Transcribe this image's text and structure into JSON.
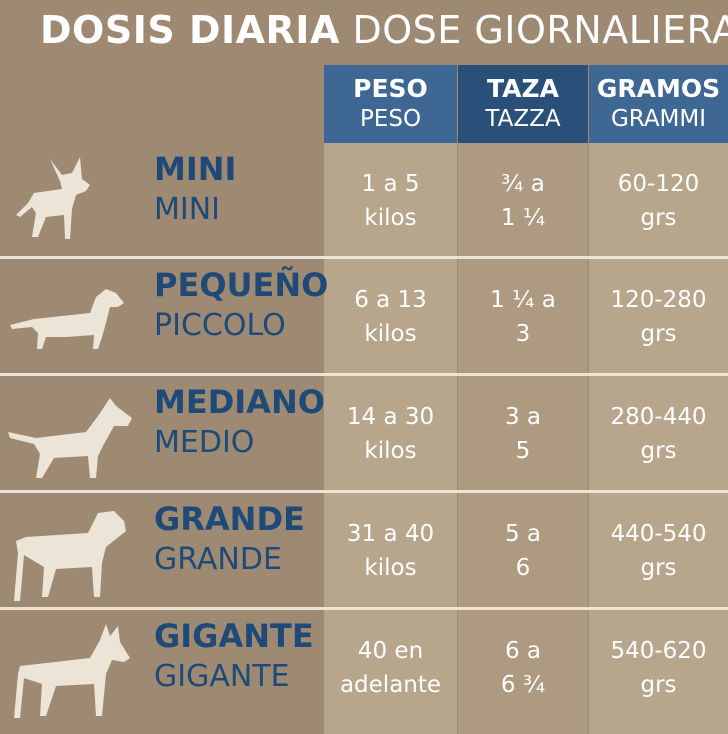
{
  "title": {
    "bold": "DOSIS DIARIA",
    "light": "DOSE GIORNALIERA"
  },
  "headers": [
    {
      "es": "PESO",
      "it": "PESO"
    },
    {
      "es": "TAZA",
      "it": "TAZZA"
    },
    {
      "es": "GRAMOS",
      "it": "GRAMMI"
    }
  ],
  "rows": [
    {
      "icon": "chihuahua-icon",
      "name_es": "MINI",
      "name_it": "MINI",
      "peso": [
        "1 a 5",
        "kilos"
      ],
      "taza": [
        "¾ a",
        "1 ¼"
      ],
      "gramos": [
        "60-120",
        "grs"
      ]
    },
    {
      "icon": "dachshund-icon",
      "name_es": "PEQUEÑO",
      "name_it": "PICCOLO",
      "peso": [
        "6 a 13",
        "kilos"
      ],
      "taza": [
        "1 ¼ a",
        "3"
      ],
      "gramos": [
        "120-280",
        "grs"
      ]
    },
    {
      "icon": "bull-terrier-icon",
      "name_es": "MEDIANO",
      "name_it": "MEDIO",
      "peso": [
        "14 a 30",
        "kilos"
      ],
      "taza": [
        "3 a",
        "5"
      ],
      "gramos": [
        "280-440",
        "grs"
      ]
    },
    {
      "icon": "rottweiler-icon",
      "name_es": "GRANDE",
      "name_it": "GRANDE",
      "peso": [
        "31 a 40",
        "kilos"
      ],
      "taza": [
        "5 a",
        "6"
      ],
      "gramos": [
        "440-540",
        "grs"
      ]
    },
    {
      "icon": "doberman-icon",
      "name_es": "GIGANTE",
      "name_it": "GIGANTE",
      "peso": [
        "40 en",
        "adelante"
      ],
      "taza": [
        "6 a",
        "6 ¾"
      ],
      "gramos": [
        "540-620",
        "grs"
      ]
    }
  ],
  "colors": {
    "background": "#9e8a72",
    "header_blue": "#3f6793",
    "header_blue_dark": "#2a4f78",
    "label_blue": "#1f4a78",
    "separator": "#ece4d6",
    "dog_silhouette": "#ece4d6"
  }
}
